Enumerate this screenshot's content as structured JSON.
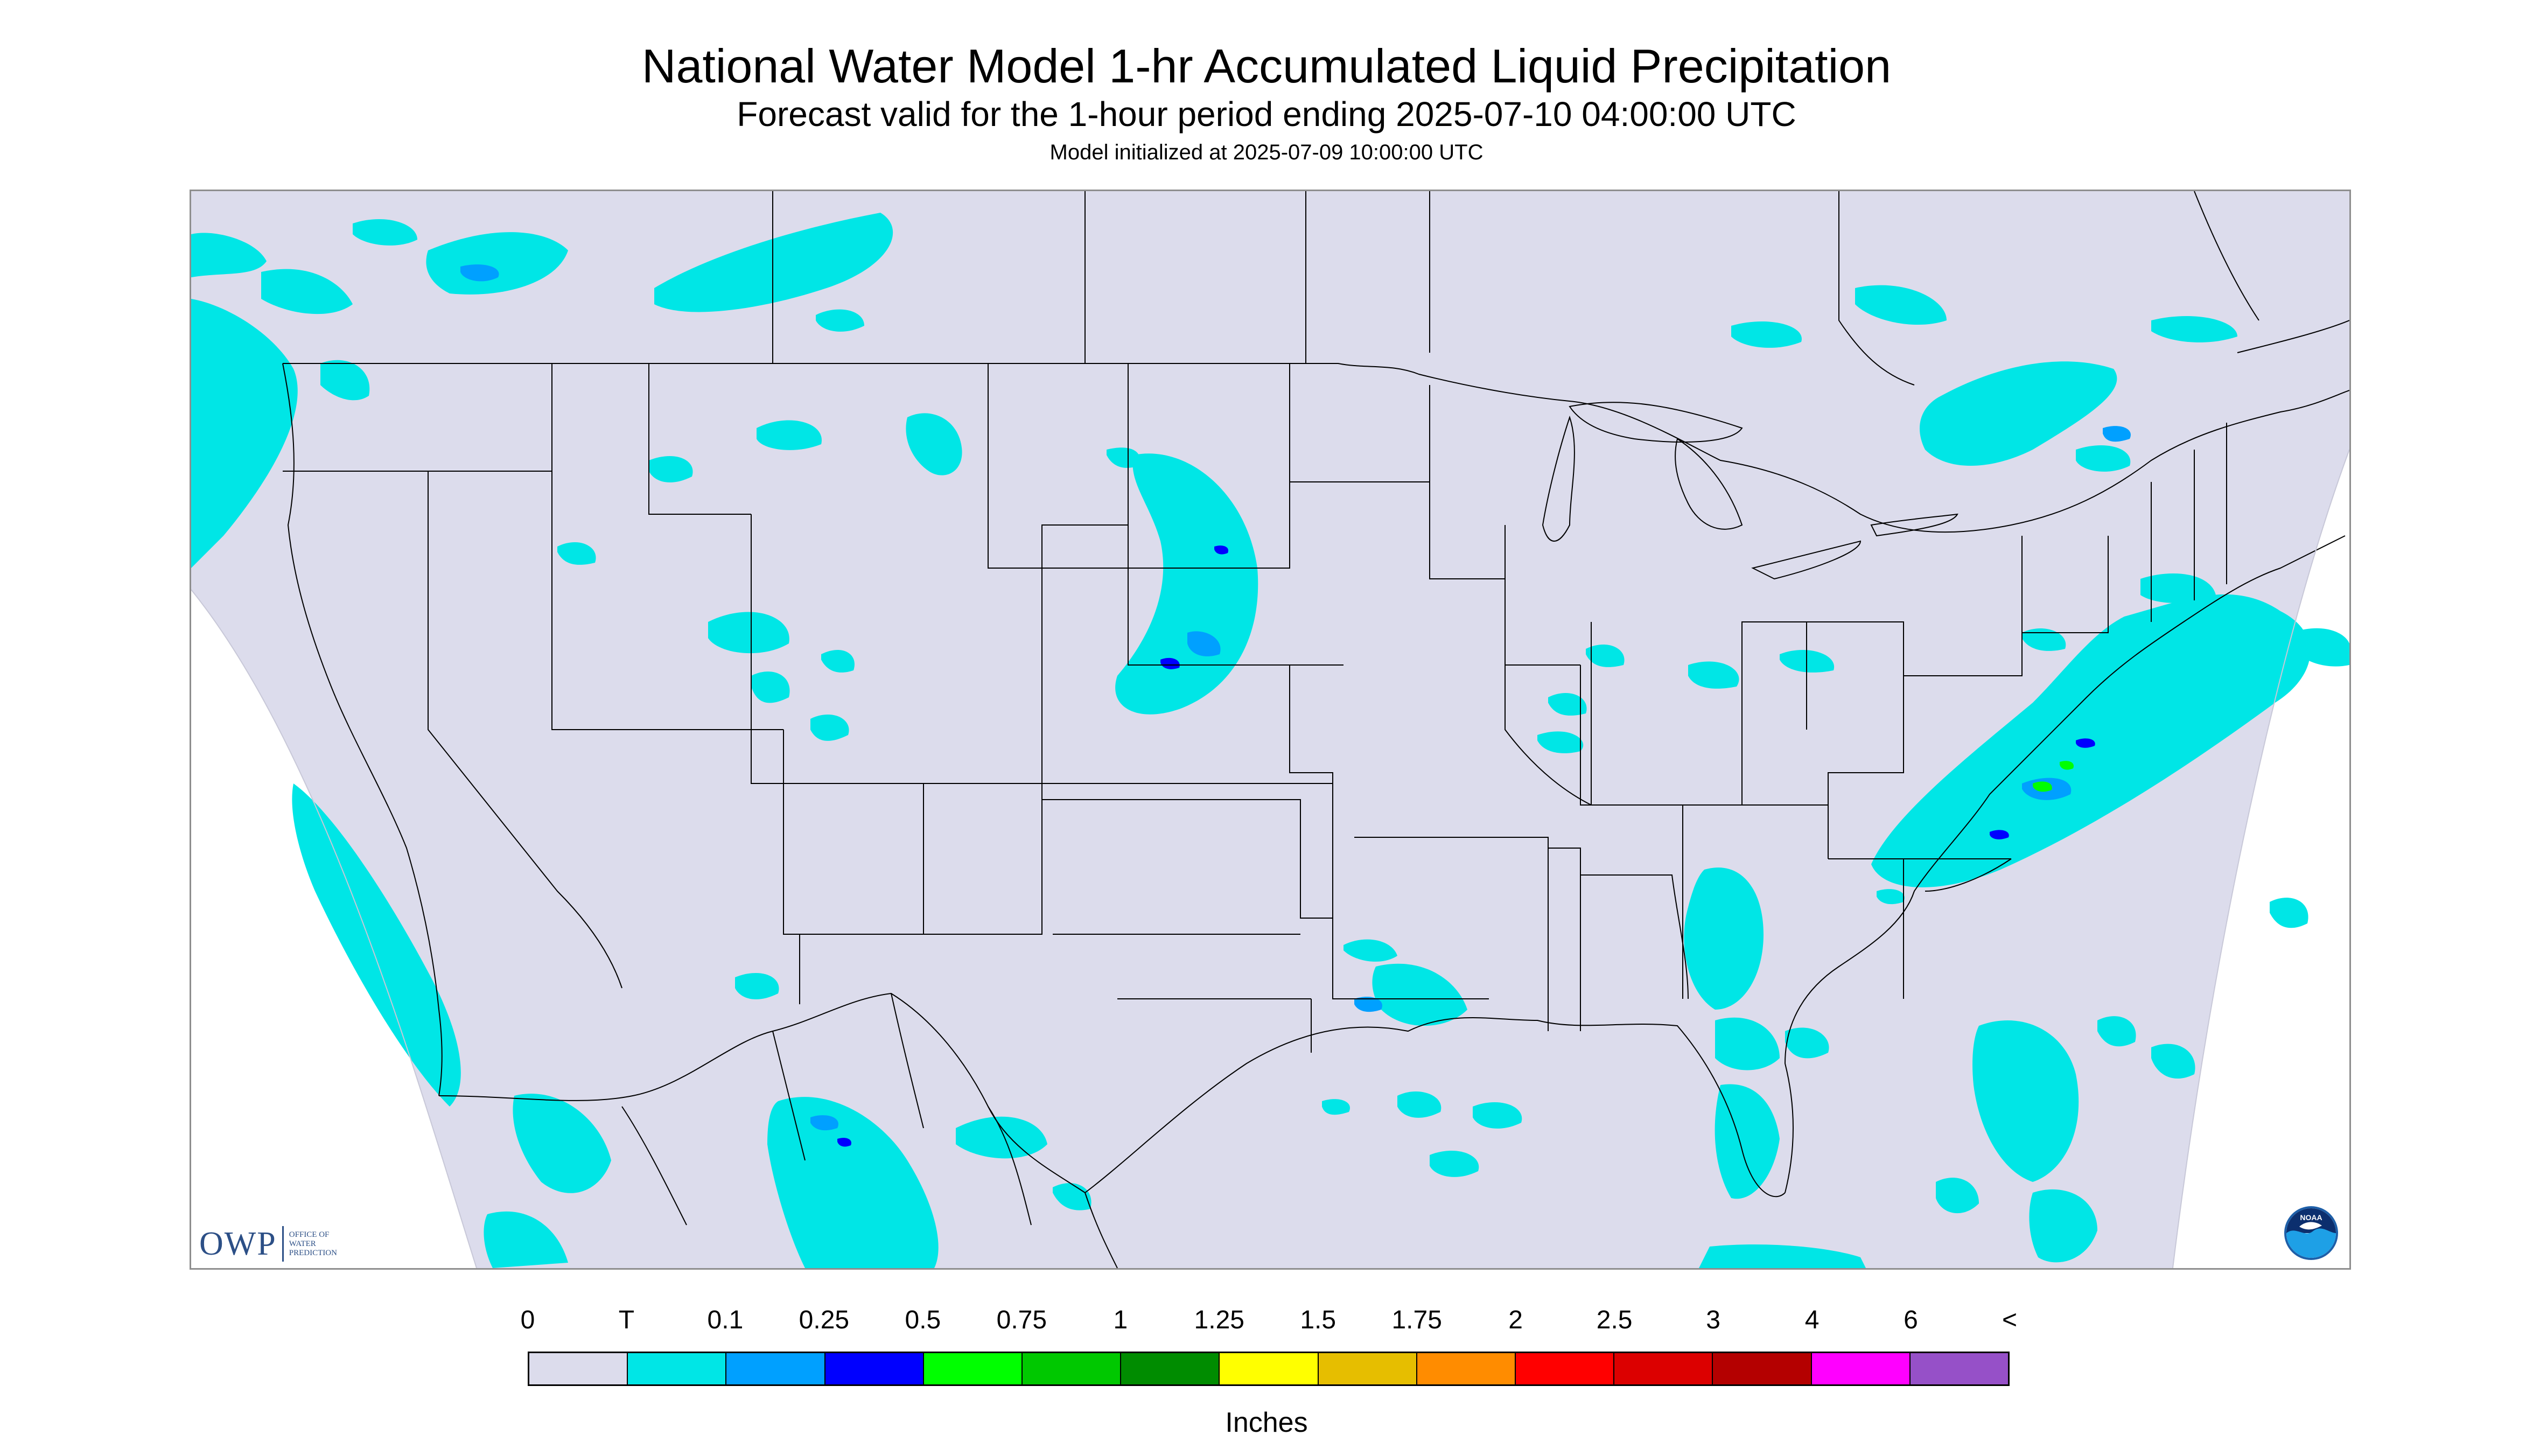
{
  "header": {
    "title": "National Water Model 1-hr Accumulated Liquid Precipitation",
    "subtitle": "Forecast valid for the 1-hour period ending 2025-07-10 04:00:00 UTC",
    "init_line": "Model initialized at 2025-07-09 10:00:00 UTC"
  },
  "map": {
    "background_color": "#dcdcec",
    "outside_color": "#ffffff",
    "border_color": "#000000"
  },
  "logos": {
    "owp_mark": "OWP",
    "owp_text": "OFFICE OF\nWATER\nPREDICTION",
    "noaa_text": "NOAA"
  },
  "legend": {
    "tick_labels": [
      "0",
      "T",
      "0.1",
      "0.25",
      "0.5",
      "0.75",
      "1",
      "1.25",
      "1.5",
      "1.75",
      "2",
      "2.5",
      "3",
      "4",
      "6",
      "<"
    ],
    "colors": [
      "#dcdcec",
      "#00e6e6",
      "#00a0ff",
      "#0000ff",
      "#00ff00",
      "#00c800",
      "#008c00",
      "#ffff00",
      "#e6be00",
      "#ff8c00",
      "#ff0000",
      "#dc0000",
      "#b40000",
      "#ff00ff",
      "#9650c8"
    ],
    "units": "Inches"
  }
}
